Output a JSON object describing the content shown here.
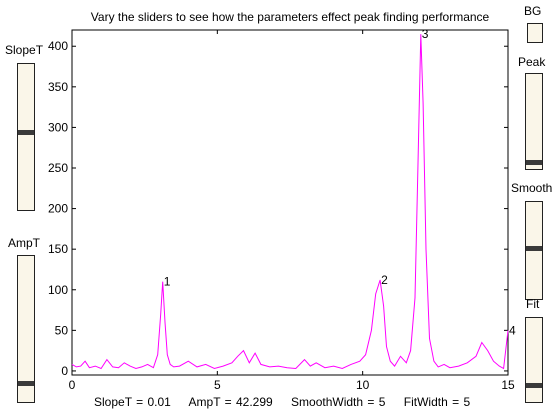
{
  "title": "Vary the sliders to see how the parameters effect peak finding performance",
  "sliders": {
    "slopeT": {
      "label": "SlopeT",
      "level": 0.52
    },
    "ampT": {
      "label": "AmpT",
      "level": 0.1
    },
    "peak": {
      "label": "Peak",
      "level": 0.02
    },
    "smooth": {
      "label": "Smooth",
      "level": 0.5
    },
    "fit": {
      "label": "Fit",
      "level": 0.15
    }
  },
  "bg_button": {
    "label": "BG"
  },
  "status": {
    "slopeT": "SlopeT = 0.01",
    "ampT": "AmpT = 42.299",
    "smoothWidth": "SmoothWidth = 5",
    "fitWidth": "FitWidth = 5"
  },
  "chart_data": {
    "type": "line",
    "title": "Vary the sliders to see how the parameters effect peak finding performance",
    "xlabel": "",
    "ylabel": "",
    "xlim": [
      0,
      15
    ],
    "ylim": [
      -5,
      420
    ],
    "xticks": [
      0,
      5,
      10,
      15
    ],
    "yticks": [
      0,
      50,
      100,
      150,
      200,
      250,
      300,
      350,
      400
    ],
    "grid": false,
    "series": [
      {
        "color": "#ff00ff",
        "x": [
          0,
          0.15,
          0.3,
          0.45,
          0.6,
          0.8,
          1.0,
          1.2,
          1.4,
          1.6,
          1.8,
          2.0,
          2.2,
          2.4,
          2.6,
          2.8,
          2.95,
          3.05,
          3.12,
          3.2,
          3.28,
          3.38,
          3.5,
          3.7,
          4.0,
          4.3,
          4.6,
          4.9,
          5.2,
          5.5,
          5.7,
          5.9,
          6.1,
          6.3,
          6.5,
          6.8,
          7.1,
          7.4,
          7.7,
          8.0,
          8.2,
          8.4,
          8.7,
          9.0,
          9.3,
          9.6,
          9.9,
          10.1,
          10.3,
          10.45,
          10.6,
          10.72,
          10.82,
          10.95,
          11.1,
          11.3,
          11.5,
          11.65,
          11.8,
          11.9,
          12.0,
          12.08,
          12.18,
          12.3,
          12.45,
          12.6,
          12.8,
          13.0,
          13.3,
          13.6,
          13.9,
          14.1,
          14.3,
          14.5,
          14.7,
          14.85,
          15.0
        ],
        "values": [
          8,
          5,
          6,
          12,
          4,
          6,
          3,
          14,
          5,
          4,
          10,
          6,
          3,
          5,
          8,
          4,
          20,
          70,
          110,
          60,
          20,
          8,
          5,
          6,
          12,
          5,
          8,
          3,
          6,
          10,
          18,
          25,
          10,
          22,
          8,
          5,
          6,
          4,
          3,
          14,
          6,
          10,
          4,
          6,
          3,
          8,
          12,
          20,
          50,
          95,
          112,
          80,
          30,
          12,
          6,
          18,
          10,
          25,
          90,
          250,
          415,
          330,
          150,
          40,
          12,
          5,
          8,
          4,
          6,
          10,
          18,
          35,
          25,
          12,
          6,
          3,
          50
        ]
      }
    ],
    "annotations": [
      {
        "text": "1",
        "x": 3.12,
        "y": 110
      },
      {
        "text": "2",
        "x": 10.6,
        "y": 112
      },
      {
        "text": "3",
        "x": 12.0,
        "y": 415
      },
      {
        "text": "4",
        "x": 15.0,
        "y": 50
      }
    ]
  }
}
